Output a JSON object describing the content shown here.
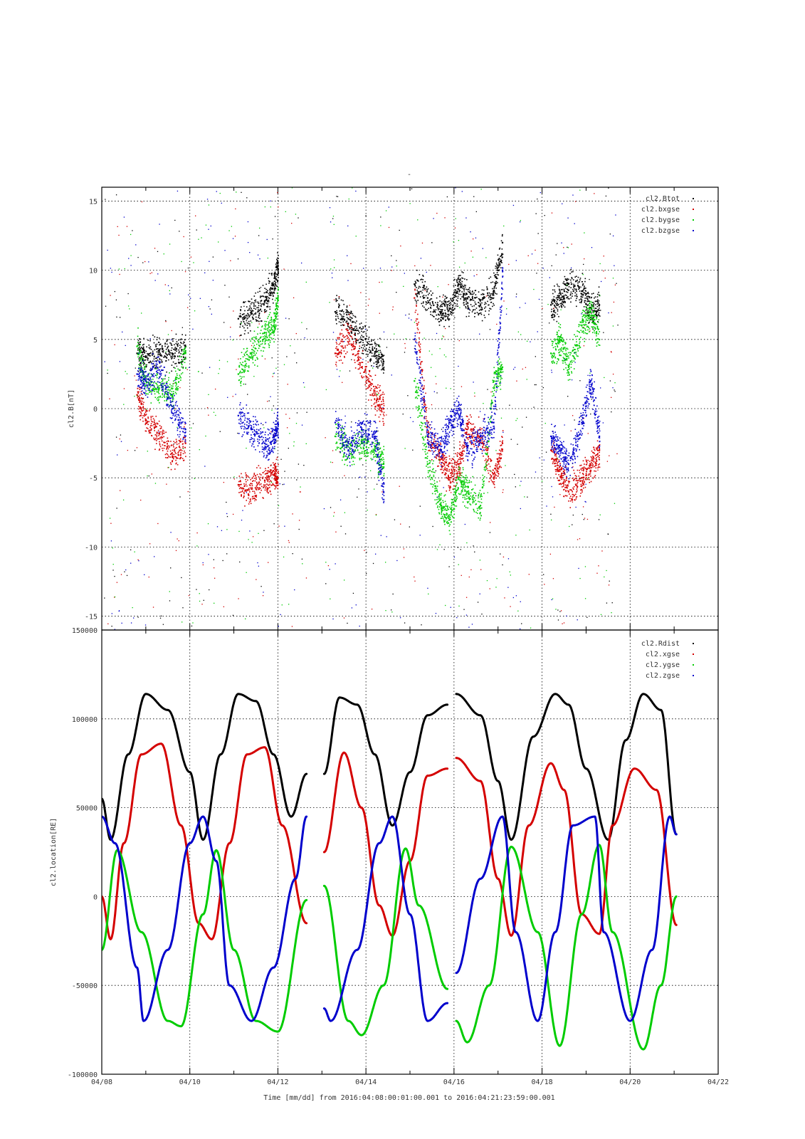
{
  "title": "-",
  "xlabel": "Time [mm/dd]  from 2016:04:08:00:01:00.001  to  2016:04:21:23:59:00.001",
  "colors": {
    "black": "#000000",
    "red": "#d40000",
    "green": "#00cc00",
    "blue": "#0000cc"
  },
  "x_ticks": [
    "04/08",
    "04/10",
    "04/12",
    "04/14",
    "04/16",
    "04/18",
    "04/20",
    "04/22"
  ],
  "chart_data": [
    {
      "type": "scatter",
      "title": "",
      "ylabel": "cl2.B[nT]",
      "xlim": [
        "04/08",
        "04/22"
      ],
      "ylim": [
        -16,
        16
      ],
      "y_ticks": [
        "15",
        "10",
        "5",
        "0",
        "-5",
        "-10",
        "-15"
      ],
      "grid": true,
      "legend_placement": "top-right",
      "legend": [
        "cl2.Btot",
        "cl2.bxgse",
        "cl2.bygse",
        "cl2.bzgse"
      ],
      "data_gaps_days": [
        [
          4.65,
          5.0
        ]
      ],
      "series": [
        {
          "name": "cl2.Btot",
          "color": "#000000",
          "x_days": [
            0.8,
            1.0,
            1.3,
            1.6,
            1.9,
            3.1,
            3.4,
            3.7,
            3.9,
            4.0,
            5.3,
            5.6,
            5.9,
            6.2,
            6.4,
            7.1,
            7.4,
            7.7,
            7.9,
            8.1,
            8.3,
            8.6,
            8.9,
            9.1,
            10.2,
            10.4,
            10.6,
            10.9,
            11.1,
            11.3
          ],
          "values": [
            4.0,
            3.8,
            4.2,
            4.0,
            4.5,
            6.5,
            6.9,
            7.8,
            9.0,
            10.3,
            7.0,
            6.5,
            5.0,
            4.0,
            3.4,
            9.0,
            8.0,
            7.0,
            7.2,
            9.0,
            8.0,
            7.5,
            8.5,
            12.0,
            7.5,
            8.0,
            9.0,
            8.5,
            7.0,
            7.5
          ]
        },
        {
          "name": "cl2.bxgse",
          "color": "#d40000",
          "x_days": [
            0.8,
            1.0,
            1.3,
            1.6,
            1.9,
            3.1,
            3.4,
            3.7,
            3.9,
            4.0,
            5.3,
            5.6,
            5.9,
            6.2,
            6.4,
            7.1,
            7.4,
            7.7,
            7.9,
            8.1,
            8.3,
            8.6,
            8.9,
            9.1,
            10.2,
            10.4,
            10.6,
            10.9,
            11.1,
            11.3
          ],
          "values": [
            1.0,
            -0.8,
            -1.8,
            -3.5,
            -2.5,
            -5.5,
            -5.8,
            -5.2,
            -4.8,
            -5.0,
            4.0,
            5.5,
            3.0,
            1.0,
            0.0,
            8.0,
            -2.0,
            -3.5,
            -5.0,
            -4.0,
            -1.5,
            -2.0,
            -5.0,
            -2.5,
            -3.0,
            -4.5,
            -6.0,
            -5.0,
            -4.0,
            -3.0
          ]
        },
        {
          "name": "cl2.bygse",
          "color": "#00cc00",
          "x_days": [
            0.8,
            1.0,
            1.3,
            1.6,
            1.9,
            3.1,
            3.4,
            3.7,
            3.9,
            4.0,
            5.3,
            5.6,
            5.9,
            6.2,
            6.4,
            7.1,
            7.4,
            7.7,
            7.9,
            8.1,
            8.3,
            8.6,
            8.9,
            9.1,
            10.2,
            10.4,
            10.6,
            10.9,
            11.1,
            11.3
          ],
          "values": [
            4.5,
            2.0,
            1.5,
            1.0,
            4.0,
            2.5,
            4.0,
            5.5,
            6.0,
            8.0,
            -2.0,
            -3.0,
            -2.5,
            -3.0,
            -4.0,
            2.0,
            -4.0,
            -7.0,
            -8.0,
            -5.0,
            -6.0,
            -7.0,
            2.0,
            3.0,
            4.0,
            5.0,
            3.0,
            6.0,
            7.0,
            5.0
          ]
        },
        {
          "name": "cl2.bzgse",
          "color": "#0000cc",
          "x_days": [
            0.8,
            1.0,
            1.3,
            1.6,
            1.9,
            3.1,
            3.4,
            3.7,
            3.9,
            4.0,
            5.3,
            5.6,
            5.9,
            6.2,
            6.4,
            7.1,
            7.4,
            7.7,
            7.9,
            8.1,
            8.3,
            8.6,
            8.9,
            9.1,
            10.2,
            10.4,
            10.6,
            10.9,
            11.1,
            11.3
          ],
          "values": [
            2.5,
            2.0,
            2.8,
            0.0,
            -1.5,
            -0.5,
            -1.5,
            -2.5,
            -2.0,
            -1.0,
            -1.0,
            -3.0,
            -1.5,
            -2.0,
            -6.0,
            5.0,
            -2.0,
            -3.0,
            -1.0,
            0.0,
            -3.0,
            -2.0,
            -1.0,
            10.0,
            -2.0,
            -3.0,
            -4.0,
            -1.0,
            2.0,
            -2.0
          ]
        }
      ]
    },
    {
      "type": "line",
      "title": "",
      "ylabel": "cl2.location[RE]",
      "xlim": [
        "04/08",
        "04/22"
      ],
      "ylim": [
        -100000,
        150000
      ],
      "y_ticks": [
        "150000",
        "100000",
        "50000",
        "0",
        "-50000",
        "-100000"
      ],
      "grid": true,
      "legend_placement": "top-right",
      "legend": [
        "cl2.Rdist",
        "cl2.xgse",
        "cl2.ygse",
        "cl2.zgse"
      ],
      "data_gaps_days": [
        [
          4.65,
          5.05
        ],
        [
          7.85,
          8.05
        ]
      ],
      "series": [
        {
          "name": "cl2.Rdist",
          "color": "#000000",
          "x_days": [
            0.0,
            0.2,
            0.6,
            1.0,
            1.5,
            2.0,
            2.3,
            2.7,
            3.1,
            3.5,
            3.9,
            4.3,
            4.65,
            5.05,
            5.4,
            5.8,
            6.2,
            6.6,
            7.0,
            7.4,
            7.85,
            8.05,
            8.6,
            9.0,
            9.3,
            9.8,
            10.3,
            10.6,
            11.0,
            11.5,
            11.9,
            12.3,
            12.7,
            13.05
          ],
          "values": [
            55000,
            32000,
            80000,
            114000,
            105000,
            70000,
            32000,
            80000,
            114000,
            110000,
            80000,
            45000,
            69000,
            69000,
            112000,
            108000,
            80000,
            40000,
            70000,
            102000,
            108000,
            114000,
            102000,
            65000,
            32000,
            90000,
            114000,
            108000,
            72000,
            32000,
            88000,
            114000,
            105000,
            35000
          ]
        },
        {
          "name": "cl2.xgse",
          "color": "#d40000",
          "x_days": [
            0.0,
            0.2,
            0.5,
            0.9,
            1.35,
            1.8,
            2.2,
            2.5,
            2.9,
            3.3,
            3.7,
            4.1,
            4.65,
            5.05,
            5.5,
            5.9,
            6.3,
            6.6,
            7.0,
            7.4,
            7.85,
            8.05,
            8.6,
            9.0,
            9.3,
            9.7,
            10.2,
            10.5,
            10.9,
            11.3,
            11.6,
            12.1,
            12.6,
            13.05
          ],
          "values": [
            0,
            -24000,
            30000,
            80000,
            86000,
            40000,
            -15000,
            -24000,
            30000,
            80000,
            84000,
            40000,
            -15000,
            25000,
            81000,
            50000,
            -5000,
            -22000,
            20000,
            68000,
            72000,
            78000,
            65000,
            10000,
            -22000,
            40000,
            75000,
            60000,
            -10000,
            -21000,
            40000,
            72000,
            60000,
            -16000
          ]
        },
        {
          "name": "cl2.ygse",
          "color": "#00cc00",
          "x_days": [
            0.0,
            0.35,
            0.9,
            1.5,
            1.8,
            2.3,
            2.6,
            3.0,
            3.5,
            4.0,
            4.65,
            5.05,
            5.6,
            5.9,
            6.4,
            6.9,
            7.2,
            7.85,
            8.05,
            8.3,
            8.8,
            9.3,
            9.9,
            10.4,
            10.9,
            11.3,
            11.6,
            12.3,
            12.7,
            13.05
          ],
          "values": [
            -30000,
            26000,
            -20000,
            -70000,
            -73000,
            -10000,
            26000,
            -30000,
            -70000,
            -76000,
            -2000,
            6000,
            -70000,
            -78000,
            -50000,
            27000,
            -5000,
            -52000,
            -70000,
            -82000,
            -50000,
            28000,
            -20000,
            -84000,
            -10000,
            29000,
            -20000,
            -86000,
            -50000,
            0
          ]
        },
        {
          "name": "cl2.zgse",
          "color": "#0000cc",
          "x_days": [
            0.0,
            0.3,
            0.8,
            0.95,
            1.5,
            2.0,
            2.3,
            2.6,
            2.9,
            3.4,
            3.9,
            4.4,
            4.65,
            5.05,
            5.2,
            5.8,
            6.3,
            6.6,
            7.0,
            7.4,
            7.85,
            8.05,
            8.6,
            9.1,
            9.4,
            9.9,
            10.3,
            10.7,
            11.2,
            11.4,
            12.0,
            12.5,
            12.9,
            13.05
          ],
          "values": [
            45000,
            30000,
            -40000,
            -70000,
            -30000,
            30000,
            45000,
            20000,
            -50000,
            -70000,
            -40000,
            10000,
            45000,
            -63000,
            -70000,
            -30000,
            30000,
            45000,
            -10000,
            -70000,
            -60000,
            -43000,
            10000,
            45000,
            -20000,
            -70000,
            -20000,
            40000,
            45000,
            -20000,
            -70000,
            -30000,
            45000,
            35000
          ]
        }
      ]
    }
  ]
}
